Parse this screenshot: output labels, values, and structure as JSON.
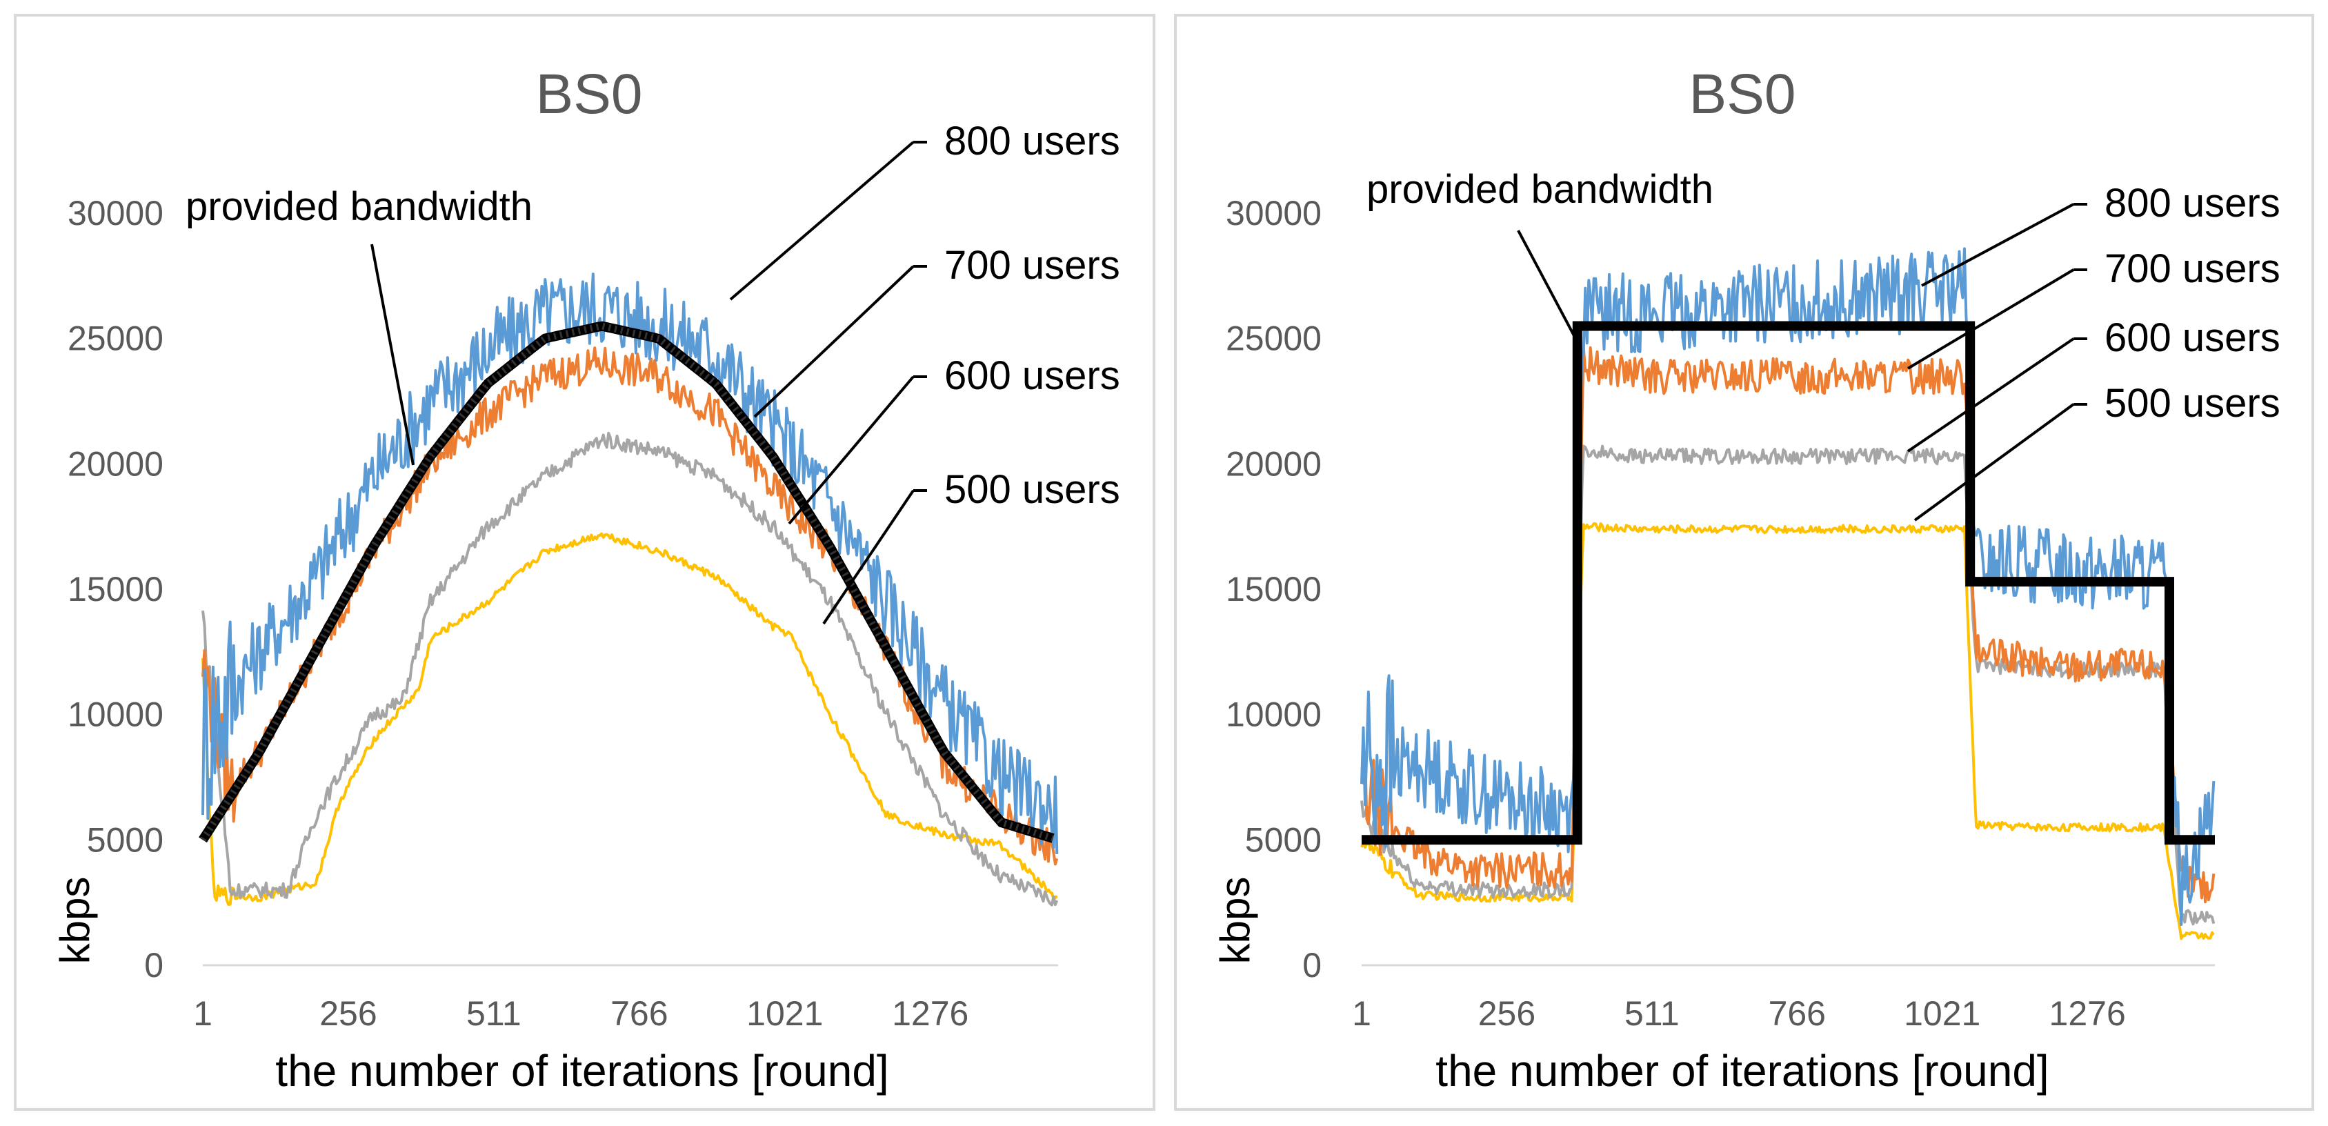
{
  "chart_data": [
    {
      "type": "line",
      "title": "BS0",
      "xlabel": "the number of iterations [round]",
      "ylabel": "kbps",
      "xlim": [
        1,
        1500
      ],
      "ylim": [
        0,
        30000
      ],
      "xticks": [
        "1",
        "256",
        "511",
        "766",
        "1021",
        "1276"
      ],
      "yticks": [
        "0",
        "5000",
        "10000",
        "15000",
        "20000",
        "25000",
        "30000"
      ],
      "grid": false,
      "legend": "none",
      "series": [
        {
          "name": "provided bandwidth",
          "color": "#000000",
          "x": [
            1,
            100,
            200,
            300,
            400,
            500,
            600,
            700,
            800,
            900,
            1000,
            1100,
            1200,
            1300,
            1400,
            1500
          ],
          "y": [
            5000,
            8500,
            12600,
            16700,
            20300,
            23200,
            25000,
            25500,
            25000,
            23200,
            20300,
            16700,
            12600,
            8500,
            5700,
            5000
          ]
        },
        {
          "name": "800 users",
          "color": "#5b9bd5",
          "x": [
            1,
            50,
            100,
            200,
            300,
            400,
            500,
            600,
            700,
            800,
            900,
            1000,
            1100,
            1200,
            1300,
            1400,
            1500
          ],
          "y": [
            9000,
            11000,
            12500,
            15500,
            19500,
            22500,
            24500,
            26000,
            26300,
            25500,
            24500,
            21500,
            18500,
            14500,
            10500,
            7500,
            6000
          ]
        },
        {
          "name": "700 users",
          "color": "#ed7d31",
          "x": [
            1,
            50,
            100,
            200,
            300,
            400,
            500,
            600,
            700,
            800,
            900,
            1000,
            1100,
            1200,
            1300,
            1400,
            1500
          ],
          "y": [
            12000,
            7000,
            8500,
            12500,
            16500,
            20000,
            22000,
            23500,
            24000,
            23500,
            22000,
            19000,
            16500,
            12500,
            8000,
            6000,
            4500
          ]
        },
        {
          "name": "600 users",
          "color": "#a5a5a5",
          "x": [
            1,
            50,
            150,
            200,
            300,
            350,
            400,
            500,
            600,
            700,
            800,
            900,
            1000,
            1100,
            1200,
            1300,
            1400,
            1500
          ],
          "y": [
            14000,
            3000,
            3000,
            6000,
            10000,
            10500,
            14500,
            17500,
            19500,
            21000,
            20500,
            19500,
            17500,
            14500,
            10000,
            6000,
            3500,
            2500
          ]
        },
        {
          "name": "500 users",
          "color": "#ffc000",
          "x": [
            1,
            20,
            100,
            200,
            240,
            300,
            380,
            400,
            500,
            600,
            700,
            800,
            900,
            1000,
            1030,
            1100,
            1200,
            1300,
            1400,
            1500
          ],
          "y": [
            12000,
            2800,
            2700,
            3300,
            6500,
            9000,
            11000,
            13000,
            14500,
            16500,
            17200,
            16500,
            15500,
            13500,
            13200,
            10000,
            6000,
            5200,
            4800,
            2600
          ]
        }
      ],
      "annotations": [
        "provided bandwidth",
        "800 users",
        "700 users",
        "600 users",
        "500 users"
      ]
    },
    {
      "type": "line",
      "title": "BS0",
      "xlabel": "the number of iterations [round]",
      "ylabel": "kbps",
      "xlim": [
        1,
        1500
      ],
      "ylim": [
        0,
        30000
      ],
      "xticks": [
        "1",
        "256",
        "511",
        "766",
        "1021",
        "1276"
      ],
      "yticks": [
        "0",
        "5000",
        "10000",
        "15000",
        "20000",
        "25000",
        "30000"
      ],
      "grid": false,
      "legend": "none",
      "series": [
        {
          "name": "provided bandwidth",
          "color": "#000000",
          "x": [
            1,
            380,
            380,
            1070,
            1070,
            1420,
            1420,
            1500
          ],
          "y": [
            5000,
            5000,
            25500,
            25500,
            15300,
            15300,
            5000,
            5000
          ]
        },
        {
          "name": "800 users",
          "color": "#5b9bd5",
          "x": [
            1,
            100,
            200,
            370,
            390,
            500,
            800,
            1060,
            1080,
            1200,
            1410,
            1440,
            1500
          ],
          "y": [
            8000,
            8000,
            7000,
            6000,
            26000,
            26000,
            26500,
            27000,
            16000,
            16000,
            15500,
            3000,
            7000
          ]
        },
        {
          "name": "700 users",
          "color": "#ed7d31",
          "x": [
            1,
            100,
            200,
            370,
            390,
            500,
            800,
            1060,
            1080,
            1200,
            1410,
            1440,
            1500
          ],
          "y": [
            7000,
            4500,
            3800,
            3800,
            24000,
            23500,
            23500,
            23500,
            12500,
            12000,
            12000,
            3500,
            3000
          ]
        },
        {
          "name": "600 users",
          "color": "#a5a5a5",
          "x": [
            1,
            100,
            200,
            370,
            390,
            500,
            800,
            1060,
            1080,
            1200,
            1410,
            1440,
            1500
          ],
          "y": [
            6000,
            3200,
            3000,
            3000,
            20500,
            20300,
            20300,
            20300,
            12000,
            11800,
            11800,
            2000,
            1800
          ]
        },
        {
          "name": "500 users",
          "color": "#ffc000",
          "x": [
            1,
            100,
            200,
            370,
            390,
            500,
            800,
            1060,
            1080,
            1200,
            1410,
            1440,
            1500
          ],
          "y": [
            5000,
            2800,
            2700,
            2700,
            17500,
            17400,
            17400,
            17400,
            5600,
            5500,
            5500,
            1200,
            1200
          ]
        }
      ],
      "annotations": [
        "provided bandwidth",
        "800 users",
        "700 users",
        "600 users",
        "500 users"
      ]
    }
  ]
}
